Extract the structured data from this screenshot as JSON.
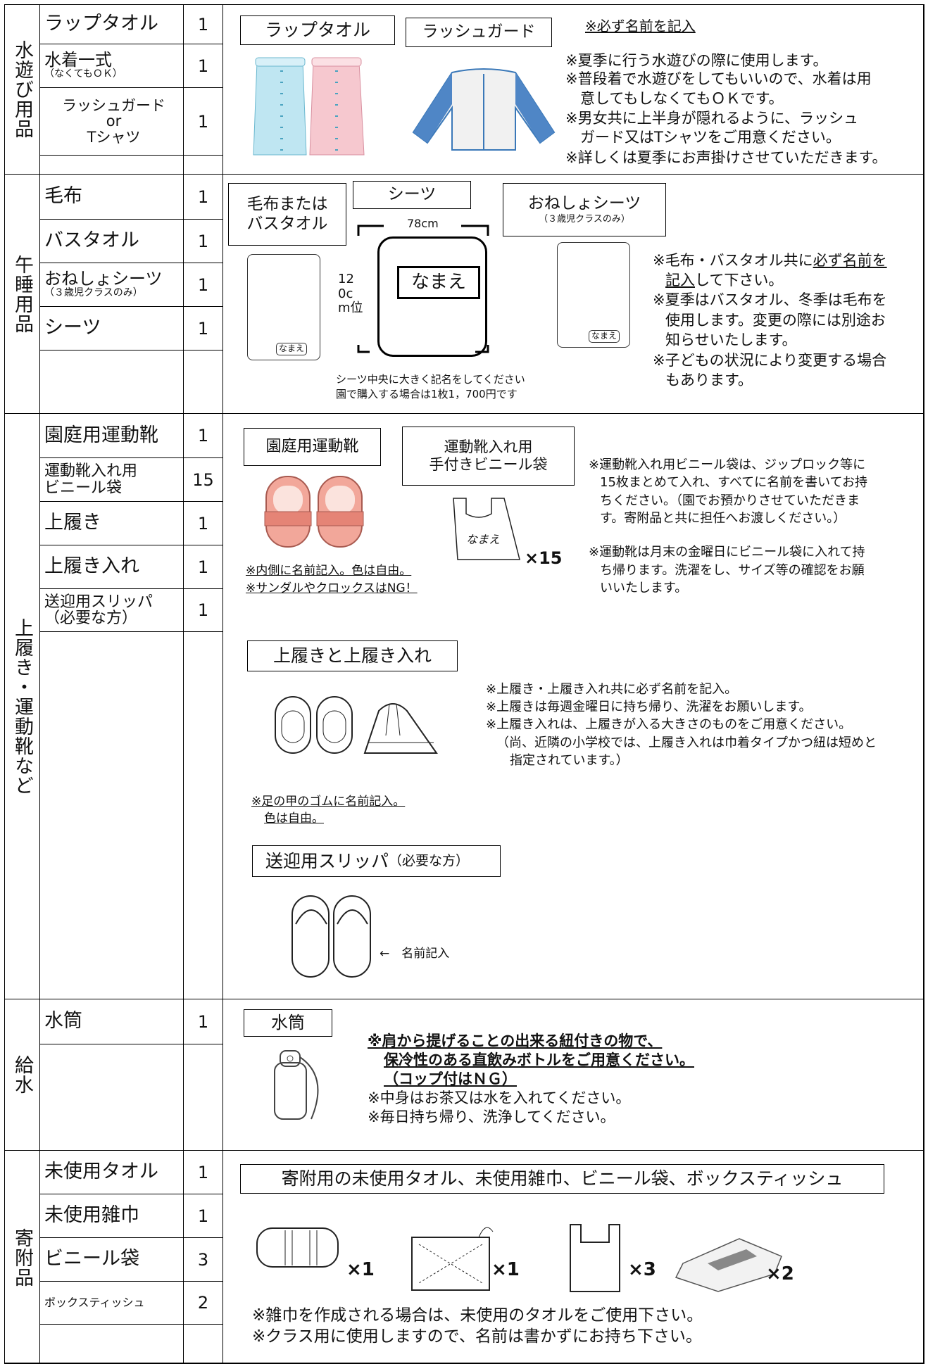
{
  "sections": [
    {
      "category": "水遊び用品",
      "items": [
        {
          "name": "ラップタオル",
          "qty": 1
        },
        {
          "name": "水着一式",
          "note": "（なくてもＯＫ）",
          "qty": 1
        },
        {
          "name": "ラッシュガード\nor\nTシャツ",
          "qty": 1
        }
      ],
      "panel": {
        "labels": [
          "ラップタオル",
          "ラッシュガード"
        ],
        "heading": "※必ず名前を記入",
        "notes": [
          "※夏季に行う水遊びの際に使用します。",
          "※普段着で水遊びをしてもいいので、水着は用",
          "意してもしなくてもＯＫです。",
          "※男女共に上半身が隠れるように、ラッシュ",
          "ガード又はTシャツをご用意ください。",
          "※詳しくは夏季にお声掛けさせていただきます。"
        ]
      }
    },
    {
      "category": "午睡用品",
      "items": [
        {
          "name": "毛布",
          "qty": 1
        },
        {
          "name": "バスタオル",
          "qty": 1
        },
        {
          "name": "おねしょシーツ",
          "note": "（３歳児クラスのみ）",
          "qty": 1
        },
        {
          "name": "シーツ",
          "qty": 1
        }
      ],
      "panel": {
        "labels": [
          "毛布または\nバスタオル",
          "シーツ",
          "おねしょシーツ"
        ],
        "label_note": "（３歳児クラスのみ）",
        "sheet_width": "78cm",
        "sheet_length": "12\n0c\nm位",
        "name_tags": [
          "なまえ",
          "なまえ",
          "なまえ"
        ],
        "captions": [
          "シーツ中央に大きく記名をしてください",
          "園で購入する場合は1枚1，700円です"
        ],
        "notes": [
          [
            "※毛布・バスタオル共に",
            "必ず名前を"
          ],
          [
            "記入",
            "して下さい。"
          ],
          [
            "※夏季はバスタオル、冬季は毛布を"
          ],
          [
            "使用します。変更の際には別途お"
          ],
          [
            "知らせいたします。"
          ],
          [
            "※子どもの状況により変更する場合"
          ],
          [
            "もあります。"
          ]
        ]
      }
    },
    {
      "category": "上履き・運動靴など",
      "items": [
        {
          "name": "園庭用運動靴",
          "qty": 1
        },
        {
          "name": "運動靴入れ用\nビニール袋",
          "qty": 15
        },
        {
          "name": "上履き",
          "qty": 1
        },
        {
          "name": "上履き入れ",
          "qty": 1
        },
        {
          "name": "送迎用スリッパ\n（必要な方）",
          "qty": 1
        }
      ],
      "panel": {
        "labels": [
          "園庭用運動靴",
          "運動靴入れ用\n手付きビニール袋",
          "上履きと上履き入れ"
        ],
        "slipper_label": "送迎用スリッパ",
        "slipper_note": "（必要な方）",
        "bag_tag": "なまえ",
        "bag_count": "×15",
        "shoe_notes": [
          "※内側に名前記入。色は自由。",
          "※サンダルやクロックスはNG！"
        ],
        "bag_notes": [
          "※運動靴入れ用ビニール袋は、ジップロック等に",
          "15枚まとめて入れ、すべてに名前を書いてお持",
          "ちください。（園でお預かりさせていただきま",
          "す。寄附品と共に担任へお渡しください。）"
        ],
        "return_notes": [
          "※運動靴は月末の金曜日にビニール袋に入れて持",
          "ち帰ります。洗濯をし、サイズ等の確認をお願",
          "いいたします。"
        ],
        "uwabaki_notes": [
          "※上履き・上履き入れ共に必ず名前を記入。",
          "※上履きは毎週金曜日に持ち帰り、洗濯をお願いします。",
          "※上履き入れは、上履きが入る大きさのものをご用意ください。",
          "（尚、近隣の小学校では、上履き入れは巾着タイプかつ紐は短めと",
          "指定されています。）"
        ],
        "rubber_notes": [
          "※足の甲のゴムに名前記入。",
          "色は自由。"
        ],
        "arrow_note": "←　名前記入"
      }
    },
    {
      "category": "給水",
      "items": [
        {
          "name": "水筒",
          "qty": 1
        }
      ],
      "panel": {
        "label": "水筒",
        "notes": [
          "※肩から提げることの出来る紐付きの物で、",
          "保冷性のある直飲みボトルをご用意ください。",
          "（コップ付はＮＧ）",
          "※中身はお茶又は水を入れてください。",
          "※毎日持ち帰り、洗浄してください。"
        ]
      }
    },
    {
      "category": "寄附品",
      "items": [
        {
          "name": "未使用タオル",
          "qty": 1
        },
        {
          "name": "未使用雑巾",
          "qty": 1
        },
        {
          "name": "ビニール袋",
          "qty": 3
        },
        {
          "name": "ボックスティッシュ",
          "qty": 2
        }
      ],
      "panel": {
        "label": "寄附用の未使用タオル、未使用雑巾、ビニール袋、ボックスティッシュ",
        "counts": [
          "×1",
          "×1",
          "×3",
          "×2"
        ],
        "notes": [
          "※雑巾を作成される場合は、未使用のタオルをご使用下さい。",
          "※クラス用に使用しますので、名前は書かずにお持ち下さい。"
        ]
      }
    }
  ]
}
